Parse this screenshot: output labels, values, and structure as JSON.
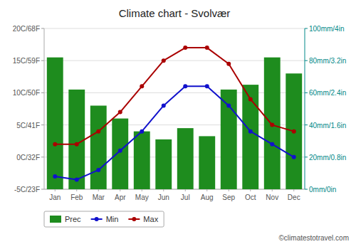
{
  "chart_data": {
    "type": "combo",
    "title": "Climate chart - Svolvær",
    "categories": [
      "Jan",
      "Feb",
      "Mar",
      "Apr",
      "May",
      "Jun",
      "Jul",
      "Aug",
      "Sep",
      "Oct",
      "Nov",
      "Dec"
    ],
    "series": [
      {
        "name": "Prec",
        "type": "bar",
        "axis": "y2",
        "color": "#1e8c1e",
        "values": [
          82,
          62,
          52,
          44,
          36,
          31,
          38,
          33,
          62,
          65,
          82,
          72
        ]
      },
      {
        "name": "Min",
        "type": "line",
        "marker": "circle",
        "color": "#1111cc",
        "values": [
          -3.0,
          -3.5,
          -2.0,
          1.0,
          4.0,
          8.0,
          11.0,
          11.0,
          8.0,
          4.0,
          2.0,
          0.0
        ]
      },
      {
        "name": "Max",
        "type": "line",
        "marker": "circle",
        "color": "#aa0000",
        "values": [
          2.0,
          2.0,
          4.0,
          7.0,
          11.0,
          15.0,
          17.0,
          17.0,
          14.5,
          9.0,
          5.0,
          4.0
        ]
      }
    ],
    "ylim": [
      -5,
      20
    ],
    "yticks": [
      {
        "value": -5,
        "label": "-5C/23F"
      },
      {
        "value": 0,
        "label": "0C/32F"
      },
      {
        "value": 5,
        "label": "5C/41F"
      },
      {
        "value": 10,
        "label": "10C/50F"
      },
      {
        "value": 15,
        "label": "15C/59F"
      },
      {
        "value": 20,
        "label": "20C/68F"
      }
    ],
    "y2lim": [
      0,
      100
    ],
    "y2ticks": [
      {
        "value": 0,
        "label": "0mm/0in"
      },
      {
        "value": 20,
        "label": "20mm/0.8in"
      },
      {
        "value": 40,
        "label": "40mm/1.6in"
      },
      {
        "value": 60,
        "label": "60mm/2.4in"
      },
      {
        "value": 80,
        "label": "80mm/3.2in"
      },
      {
        "value": 100,
        "label": "100mm/4in"
      }
    ],
    "grid": true,
    "legend": "bottom",
    "annotations": [
      "©climatestotravel.com"
    ]
  }
}
